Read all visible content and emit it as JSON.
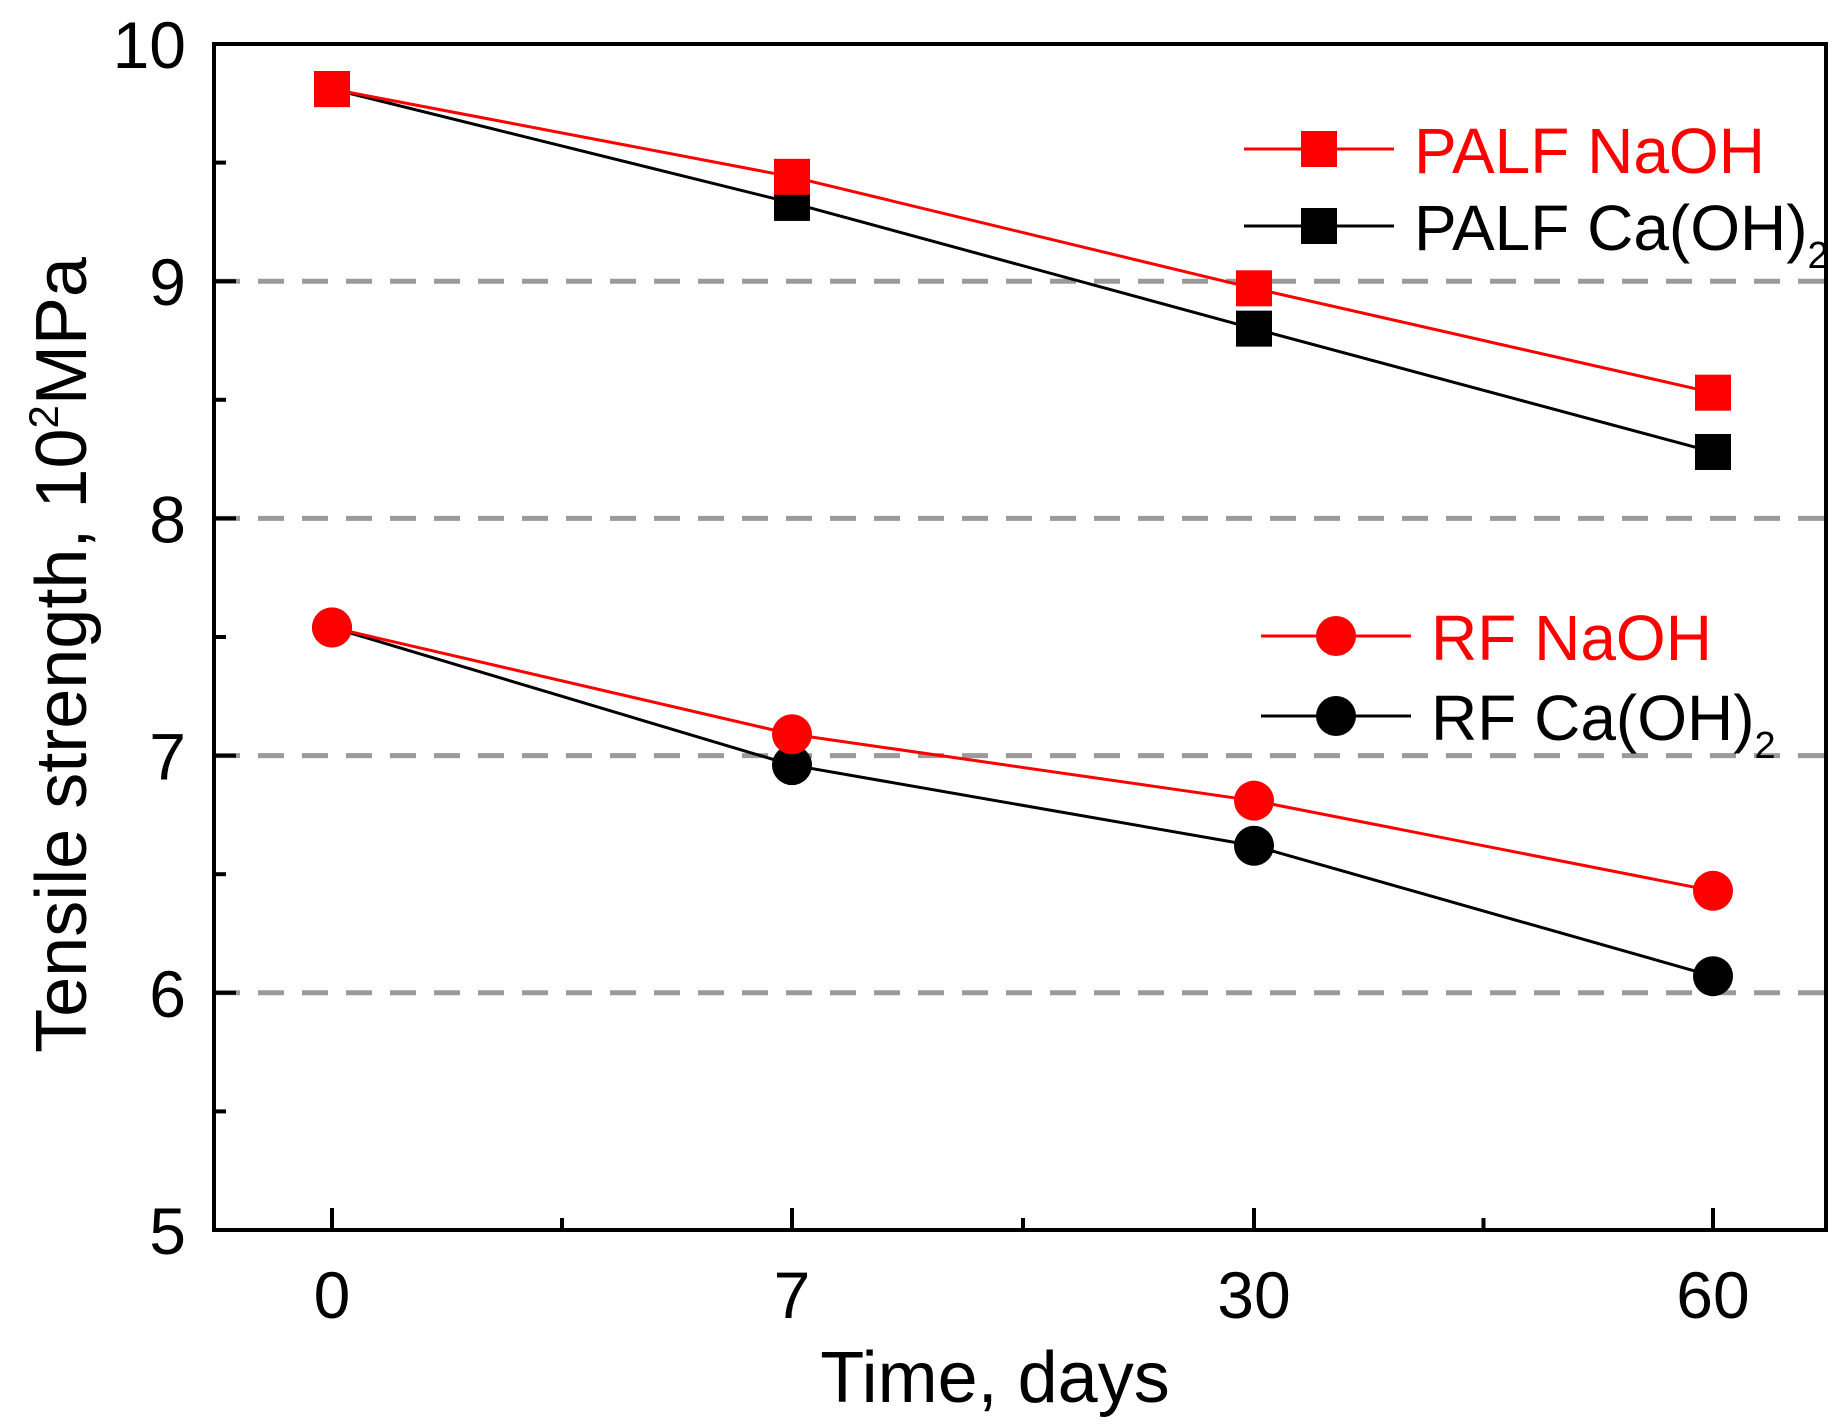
{
  "chart_data": {
    "type": "line",
    "title": "",
    "xlabel": "Time, days",
    "ylabel_main": "Tensile strength, 10",
    "ylabel_sup": "2",
    "ylabel_unit": "MPa",
    "categories": [
      "0",
      "7",
      "30",
      "60"
    ],
    "ylim": [
      5,
      10
    ],
    "y_ticks": [
      5,
      6,
      7,
      8,
      9,
      10
    ],
    "y_tick_labels": [
      "5",
      "6",
      "7",
      "8",
      "9",
      "10"
    ],
    "y_minor_ticks": [
      5.5,
      6.5,
      7.5,
      8.5,
      9.5
    ],
    "gridlines_y": [
      6,
      7,
      8,
      9
    ],
    "grid": "dashed horizontal at 6, 7, 8, 9",
    "series": [
      {
        "name": "PALF NaOH",
        "label_main": "PALF NaOH",
        "label_sub": "",
        "marker": "square",
        "color": "#ff0000",
        "values": [
          9.81,
          9.44,
          8.97,
          8.53
        ]
      },
      {
        "name": "PALF Ca(OH)2",
        "label_main": "PALF Ca(OH)",
        "label_sub": "2",
        "marker": "square",
        "color": "#000000",
        "values": [
          9.81,
          9.33,
          8.8,
          8.28
        ]
      },
      {
        "name": "RF NaOH",
        "label_main": "RF NaOH",
        "label_sub": "",
        "marker": "circle",
        "color": "#ff0000",
        "values": [
          7.54,
          7.09,
          6.81,
          6.43
        ]
      },
      {
        "name": "RF Ca(OH)2",
        "label_main": "RF Ca(OH)",
        "label_sub": "2",
        "marker": "circle",
        "color": "#000000",
        "values": [
          7.54,
          6.96,
          6.62,
          6.07
        ]
      }
    ],
    "legend": [
      {
        "group": "PALF",
        "position": "top-right"
      },
      {
        "group": "RF",
        "position": "middle-right"
      }
    ]
  }
}
